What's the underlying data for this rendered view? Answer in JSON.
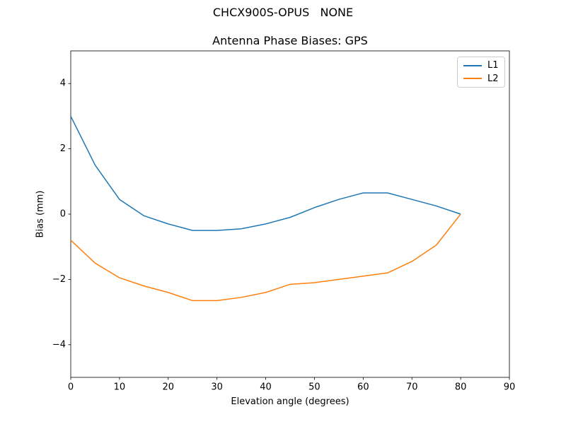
{
  "figure": {
    "suptitle": "CHCX900S-OPUS   NONE"
  },
  "chart_data": {
    "type": "line",
    "title": "Antenna Phase Biases: GPS",
    "xlabel": "Elevation angle (degrees)",
    "ylabel": "Bias (mm)",
    "xlim": [
      0,
      90
    ],
    "ylim": [
      -5,
      5
    ],
    "xticks": [
      0,
      10,
      20,
      30,
      40,
      50,
      60,
      70,
      80,
      90
    ],
    "yticks": [
      -4,
      -2,
      0,
      2,
      4
    ],
    "grid": false,
    "legend_position": "upper right",
    "x": [
      0,
      5,
      10,
      15,
      20,
      25,
      30,
      35,
      40,
      45,
      50,
      55,
      60,
      65,
      70,
      75,
      80
    ],
    "series": [
      {
        "name": "L1",
        "color": "#1f77b4",
        "values": [
          3.0,
          1.5,
          0.45,
          -0.05,
          -0.3,
          -0.5,
          -0.5,
          -0.45,
          -0.3,
          -0.1,
          0.2,
          0.45,
          0.65,
          0.65,
          0.45,
          0.25,
          0.0
        ]
      },
      {
        "name": "L2",
        "color": "#ff7f0e",
        "values": [
          -0.8,
          -1.5,
          -1.95,
          -2.2,
          -2.4,
          -2.65,
          -2.65,
          -2.55,
          -2.4,
          -2.15,
          -2.1,
          -2.0,
          -1.9,
          -1.8,
          -1.45,
          -0.95,
          0.0
        ]
      }
    ]
  }
}
